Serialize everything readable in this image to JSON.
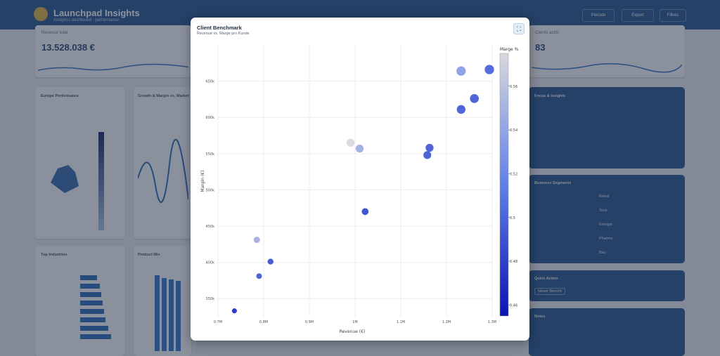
{
  "app": {
    "title": "Launchpad Insights",
    "subtitle": "Analytics dashboard · performance",
    "buttons": [
      "Période",
      "Export",
      "Filtres"
    ]
  },
  "background": {
    "kpi_left": {
      "title": "Revenue total",
      "value": "13.528.038 €"
    },
    "kpi_right": {
      "title": "Clients actifs",
      "value": "83"
    },
    "cards": [
      {
        "title": "Europe Performance"
      },
      {
        "title": "Growth & Margin vs. Market"
      },
      {
        "title": "Top Industries"
      },
      {
        "title": "Product Mix"
      }
    ],
    "side_panels": [
      {
        "title": "Focus & Insights"
      },
      {
        "title": "Business Segments",
        "items": [
          "Retail",
          "Tech",
          "Energie",
          "Pharma",
          "Bau"
        ]
      },
      {
        "title": "Quick Action",
        "button": "Neuer Bericht"
      },
      {
        "title": "Notes"
      }
    ]
  },
  "modal": {
    "title": "Client Benchmark",
    "subtitle": "Revenue vs. Marge pro Kunde",
    "expand_icon": "expand-icon"
  },
  "chart_data": {
    "type": "scatter",
    "xlabel": "Revenue (€)",
    "ylabel": "Margin (€)",
    "xlim": [
      700000,
      1300000
    ],
    "ylim": [
      325000,
      700000
    ],
    "x_ticks": [
      {
        "v": 700000,
        "label": "0.7M"
      },
      {
        "v": 800000,
        "label": "0.8M"
      },
      {
        "v": 900000,
        "label": "0.9M"
      },
      {
        "v": 1000000,
        "label": "1M"
      },
      {
        "v": 1100000,
        "label": "1.1M"
      },
      {
        "v": 1200000,
        "label": "1.2M"
      },
      {
        "v": 1300000,
        "label": "1.3M"
      }
    ],
    "y_ticks": [
      {
        "v": 350000,
        "label": "350k"
      },
      {
        "v": 400000,
        "label": "400k"
      },
      {
        "v": 450000,
        "label": "450k"
      },
      {
        "v": 500000,
        "label": "500k"
      },
      {
        "v": 550000,
        "label": "550k"
      },
      {
        "v": 600000,
        "label": "600k"
      },
      {
        "v": 650000,
        "label": "650k"
      }
    ],
    "color_label": "Marge %",
    "color_range": [
      0.455,
      0.575
    ],
    "color_ticks": [
      0.46,
      0.48,
      0.5,
      0.52,
      0.54,
      0.56
    ],
    "color_low": "#0a14b4",
    "color_high": "#d8d8dc",
    "grid": true,
    "points": [
      {
        "x": 736000,
        "y": 333000,
        "c": 0.468
      },
      {
        "x": 790000,
        "y": 381000,
        "c": 0.492
      },
      {
        "x": 815000,
        "y": 401000,
        "c": 0.488
      },
      {
        "x": 785000,
        "y": 431000,
        "c": 0.545
      },
      {
        "x": 1022000,
        "y": 470000,
        "c": 0.482
      },
      {
        "x": 990000,
        "y": 565000,
        "c": 0.575
      },
      {
        "x": 1010000,
        "y": 557000,
        "c": 0.545
      },
      {
        "x": 1158000,
        "y": 548000,
        "c": 0.492
      },
      {
        "x": 1163000,
        "y": 558000,
        "c": 0.492
      },
      {
        "x": 1232000,
        "y": 611000,
        "c": 0.493
      },
      {
        "x": 1261000,
        "y": 626000,
        "c": 0.492
      },
      {
        "x": 1232000,
        "y": 664000,
        "c": 0.534
      },
      {
        "x": 1346000,
        "y": 666000,
        "c": 0.497
      }
    ]
  }
}
